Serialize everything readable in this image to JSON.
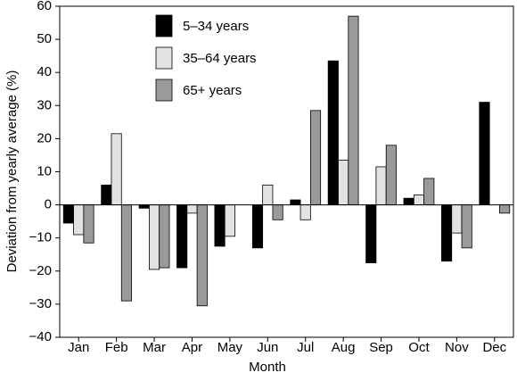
{
  "chart_data": {
    "type": "bar",
    "x_label": "Month",
    "y_label": "Deviation from yearly average (%)",
    "categories": [
      "Jan",
      "Feb",
      "Mar",
      "Apr",
      "May",
      "Jun",
      "Jul",
      "Aug",
      "Sep",
      "Oct",
      "Nov",
      "Dec"
    ],
    "series": [
      {
        "name": "5–34 years",
        "color": "#000000",
        "values": [
          -5.5,
          6,
          -1,
          -19,
          -12.5,
          -13,
          1.5,
          43.5,
          -17.5,
          2,
          -17,
          31
        ]
      },
      {
        "name": "35–64 years",
        "color": "#e2e2e2",
        "values": [
          -9,
          21.5,
          -19.5,
          -2.5,
          -9.5,
          6,
          -4.5,
          13.5,
          11.5,
          3,
          -8.5,
          0
        ]
      },
      {
        "name": "65+ years",
        "color": "#9a9a9a",
        "values": [
          -11.5,
          -29,
          -19,
          -30.5,
          0,
          -4.5,
          28.5,
          57,
          18,
          8,
          -13,
          -2.5
        ]
      }
    ],
    "ylim": [
      -40,
      60
    ],
    "yticks": [
      {
        "value": -40,
        "label": "−40"
      },
      {
        "value": -30,
        "label": "−30"
      },
      {
        "value": -20,
        "label": "−20"
      },
      {
        "value": -10,
        "label": "−10"
      },
      0,
      10,
      20,
      30,
      40,
      50,
      60
    ],
    "grid": false,
    "legend": "top-left"
  }
}
